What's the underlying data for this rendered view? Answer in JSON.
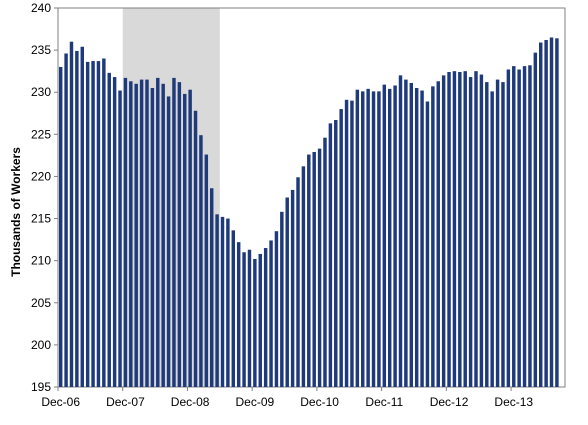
{
  "chart_data": {
    "type": "bar",
    "title": "",
    "xlabel": "",
    "ylabel": "Thousands of Workers",
    "ylim": [
      195,
      240
    ],
    "yticks": [
      195,
      200,
      205,
      210,
      215,
      220,
      225,
      230,
      235,
      240
    ],
    "xtick_labels": [
      "Dec-06",
      "Dec-07",
      "Dec-08",
      "Dec-09",
      "Dec-10",
      "Dec-11",
      "Dec-12",
      "Dec-13"
    ],
    "start_month": "Dec-06",
    "bar_color": "#1f3a7a",
    "shade_color": "#d9d9d9",
    "recession_shading": {
      "start": "Dec-07",
      "end": "Jun-09"
    },
    "values": [
      233.0,
      234.6,
      236.0,
      234.9,
      235.4,
      233.6,
      233.7,
      233.7,
      234.0,
      232.3,
      231.8,
      230.2,
      231.7,
      231.3,
      231.0,
      231.5,
      231.5,
      230.5,
      231.7,
      231.0,
      229.5,
      231.7,
      231.2,
      229.8,
      230.3,
      227.8,
      224.9,
      222.6,
      218.6,
      215.5,
      215.2,
      215.0,
      213.6,
      212.2,
      211.0,
      211.3,
      210.2,
      210.8,
      211.5,
      212.4,
      213.5,
      215.8,
      217.5,
      218.4,
      219.9,
      221.2,
      222.6,
      222.9,
      223.3,
      224.6,
      226.3,
      226.7,
      228.0,
      229.1,
      229.0,
      230.3,
      230.1,
      230.4,
      230.1,
      230.1,
      230.9,
      230.4,
      230.8,
      232.0,
      231.5,
      231.1,
      230.5,
      230.2,
      228.9,
      230.7,
      231.3,
      232.0,
      232.4,
      232.5,
      232.4,
      232.5,
      231.8,
      232.5,
      232.1,
      231.2,
      230.1,
      231.5,
      231.2,
      232.7,
      233.1,
      232.7,
      233.1,
      233.2,
      234.7,
      235.9,
      236.2,
      236.5,
      236.4
    ]
  }
}
